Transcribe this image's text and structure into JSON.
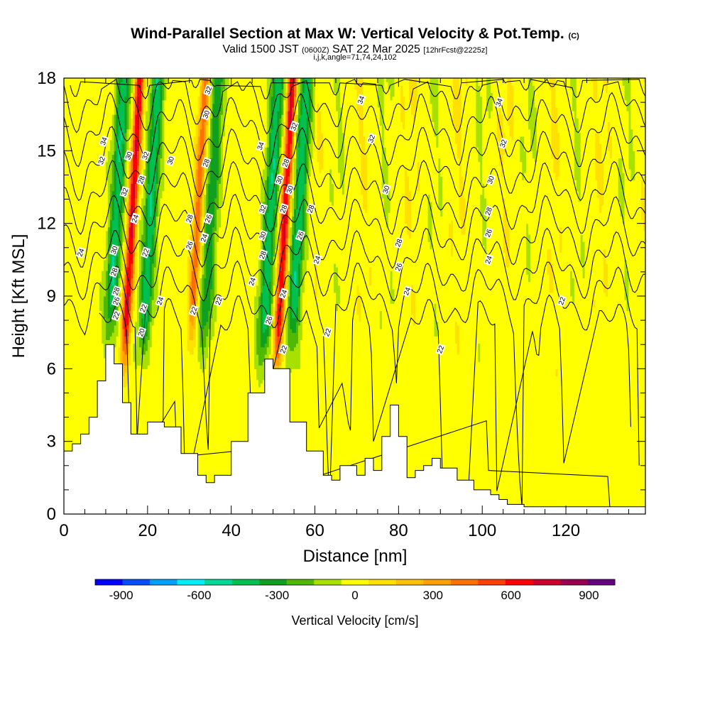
{
  "header": {
    "title": "Wind-Parallel Section at Max W: Vertical Velocity & Pot.Temp.",
    "title_mark": "(C)",
    "valid_a": "Valid 1500 JST",
    "valid_b": "(0600Z)",
    "valid_c": "SAT 22 Mar 2025",
    "valid_d": "[12hrFcst@2225z]",
    "indices": "i,j,k,angle=71,74,24,102"
  },
  "chart_data": {
    "type": "heatmap",
    "xlabel": "Distance [nm]",
    "ylabel": "Height [Kft MSL]",
    "xlim": [
      0,
      139
    ],
    "ylim": [
      0,
      18
    ],
    "x_ticks": [
      "0",
      "20",
      "40",
      "60",
      "80",
      "100",
      "120"
    ],
    "x_tick_values": [
      0,
      20,
      40,
      60,
      80,
      100,
      120
    ],
    "y_ticks": [
      "0",
      "3",
      "6",
      "9",
      "12",
      "15",
      "18"
    ],
    "y_tick_values": [
      0,
      3,
      6,
      9,
      12,
      15,
      18
    ],
    "colorbar": {
      "label": "Vertical Velocity [cm/s]",
      "tick_labels": [
        "-900",
        "-600",
        "-300",
        "0",
        "300",
        "600",
        "900"
      ],
      "tick_values": [
        -900,
        -600,
        -300,
        0,
        300,
        600,
        900
      ],
      "range": [
        -1000,
        1000
      ],
      "colors": [
        "#0000ff",
        "#0050ff",
        "#00a0ff",
        "#00eeff",
        "#00d898",
        "#00c050",
        "#10a020",
        "#50b800",
        "#a8e000",
        "#ffff00",
        "#ffe000",
        "#ffc000",
        "#ffa000",
        "#ff7000",
        "#ff4000",
        "#ff0000",
        "#cc0030",
        "#990050",
        "#660080"
      ]
    },
    "terrain_profile": {
      "distance": [
        0,
        2,
        4,
        6,
        8,
        10,
        12,
        14,
        16,
        20,
        24,
        28,
        32,
        34,
        36,
        40,
        44,
        48,
        50,
        54,
        58,
        62,
        64,
        66,
        70,
        72,
        74,
        76,
        78,
        80,
        82,
        84,
        86,
        88,
        90,
        94,
        98,
        102,
        104,
        106,
        110,
        120,
        130,
        139
      ],
      "height": [
        2.6,
        2.9,
        3.3,
        4.0,
        5.5,
        7.0,
        6.2,
        4.6,
        3.3,
        3.8,
        3.6,
        2.5,
        1.6,
        1.3,
        1.6,
        3.0,
        5.0,
        6.4,
        6.0,
        3.8,
        2.6,
        1.6,
        1.4,
        2.0,
        1.6,
        2.3,
        1.8,
        3.2,
        4.5,
        3.2,
        1.5,
        1.8,
        2.0,
        2.3,
        1.9,
        1.4,
        1.0,
        0.8,
        0.6,
        0.4,
        0.3,
        0.3,
        0.3,
        0.3
      ]
    },
    "vertical_velocity_cores": [
      {
        "distance": 14.5,
        "height_bottom": 6.5,
        "height_top": 18,
        "max_cm_s": 700
      },
      {
        "distance": 30.5,
        "height_bottom": 7.5,
        "height_top": 18,
        "max_cm_s": 450
      },
      {
        "distance": 51.0,
        "height_bottom": 6.5,
        "height_top": 18,
        "max_cm_s": 700
      },
      {
        "distance": 11.0,
        "height_bottom": 7.5,
        "height_top": 18,
        "max_cm_s": -450
      },
      {
        "distance": 19.0,
        "height_bottom": 7.0,
        "height_top": 18,
        "max_cm_s": -450
      },
      {
        "distance": 33.5,
        "height_bottom": 7.0,
        "height_top": 18,
        "max_cm_s": -350
      },
      {
        "distance": 47.5,
        "height_bottom": 6.5,
        "height_top": 18,
        "max_cm_s": -450
      },
      {
        "distance": 54.5,
        "height_bottom": 7.0,
        "height_top": 18,
        "max_cm_s": -450
      }
    ],
    "potential_temperature_labels": [
      {
        "text": "34",
        "x": 9.5,
        "y": 15.4
      },
      {
        "text": "32",
        "x": 9.0,
        "y": 14.6
      },
      {
        "text": "30",
        "x": 15.5,
        "y": 14.8
      },
      {
        "text": "32",
        "x": 19.5,
        "y": 14.8
      },
      {
        "text": "30",
        "x": 25.5,
        "y": 14.6
      },
      {
        "text": "28",
        "x": 18.5,
        "y": 13.8
      },
      {
        "text": "32",
        "x": 14.5,
        "y": 13.3
      },
      {
        "text": "24",
        "x": 17.0,
        "y": 12.2
      },
      {
        "text": "24",
        "x": 4.0,
        "y": 10.8
      },
      {
        "text": "30",
        "x": 12.0,
        "y": 10.9
      },
      {
        "text": "28",
        "x": 12.0,
        "y": 10.0
      },
      {
        "text": "22",
        "x": 19.5,
        "y": 10.8
      },
      {
        "text": "28",
        "x": 12.5,
        "y": 9.2
      },
      {
        "text": "26",
        "x": 12.5,
        "y": 8.8
      },
      {
        "text": "22",
        "x": 12.5,
        "y": 8.2
      },
      {
        "text": "22",
        "x": 19.0,
        "y": 8.5
      },
      {
        "text": "24",
        "x": 23.0,
        "y": 8.8
      },
      {
        "text": "20",
        "x": 18.5,
        "y": 7.5
      },
      {
        "text": "32",
        "x": 34.5,
        "y": 17.5
      },
      {
        "text": "30",
        "x": 34.0,
        "y": 16.5
      },
      {
        "text": "28",
        "x": 34.0,
        "y": 14.5
      },
      {
        "text": "28",
        "x": 30.0,
        "y": 12.2
      },
      {
        "text": "26",
        "x": 34.5,
        "y": 12.2
      },
      {
        "text": "24",
        "x": 33.5,
        "y": 11.4
      },
      {
        "text": "26",
        "x": 30.0,
        "y": 11.1
      },
      {
        "text": "22",
        "x": 31.0,
        "y": 8.4
      },
      {
        "text": "22",
        "x": 37.0,
        "y": 8.8
      },
      {
        "text": "34",
        "x": 47.0,
        "y": 15.2
      },
      {
        "text": "32",
        "x": 47.5,
        "y": 12.6
      },
      {
        "text": "30",
        "x": 47.5,
        "y": 11.5
      },
      {
        "text": "28",
        "x": 47.5,
        "y": 10.7
      },
      {
        "text": "24",
        "x": 45.0,
        "y": 9.6
      },
      {
        "text": "26",
        "x": 49.0,
        "y": 8.0
      },
      {
        "text": "28",
        "x": 53.0,
        "y": 14.5
      },
      {
        "text": "30",
        "x": 51.5,
        "y": 13.8
      },
      {
        "text": "30",
        "x": 54.0,
        "y": 13.4
      },
      {
        "text": "32",
        "x": 55.0,
        "y": 16.0
      },
      {
        "text": "28",
        "x": 52.5,
        "y": 12.6
      },
      {
        "text": "26",
        "x": 56.5,
        "y": 11.5
      },
      {
        "text": "28",
        "x": 59.0,
        "y": 12.6
      },
      {
        "text": "24",
        "x": 60.5,
        "y": 10.5
      },
      {
        "text": "24",
        "x": 52.5,
        "y": 9.1
      },
      {
        "text": "22",
        "x": 52.5,
        "y": 6.8
      },
      {
        "text": "22",
        "x": 63.0,
        "y": 7.5
      },
      {
        "text": "34",
        "x": 71.0,
        "y": 17.1
      },
      {
        "text": "32",
        "x": 73.5,
        "y": 15.5
      },
      {
        "text": "30",
        "x": 77.0,
        "y": 13.4
      },
      {
        "text": "28",
        "x": 80.0,
        "y": 11.2
      },
      {
        "text": "26",
        "x": 80.0,
        "y": 10.2
      },
      {
        "text": "24",
        "x": 82.0,
        "y": 9.2
      },
      {
        "text": "22",
        "x": 90.0,
        "y": 6.8
      },
      {
        "text": "34",
        "x": 104.0,
        "y": 17.0
      },
      {
        "text": "32",
        "x": 105.0,
        "y": 15.3
      },
      {
        "text": "30",
        "x": 102.0,
        "y": 13.8
      },
      {
        "text": "28",
        "x": 101.5,
        "y": 12.5
      },
      {
        "text": "26",
        "x": 101.5,
        "y": 11.6
      },
      {
        "text": "24",
        "x": 101.5,
        "y": 10.5
      },
      {
        "text": "22",
        "x": 119.0,
        "y": 8.8
      }
    ]
  }
}
